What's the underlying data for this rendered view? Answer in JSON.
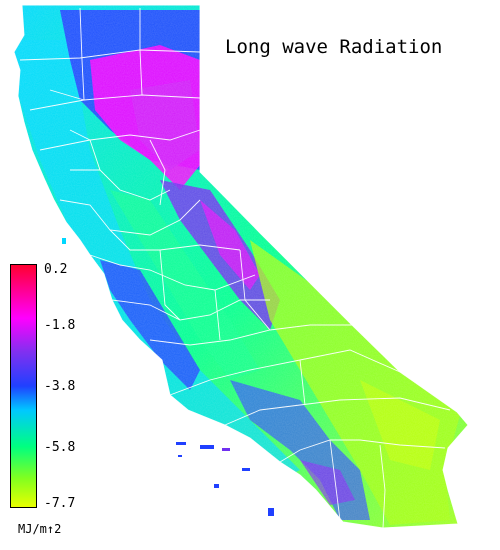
{
  "map": {
    "title": "Long wave Radiation",
    "colors": {
      "max": "#ff0030",
      "high": "#ff00ff",
      "mid_high": "#8030f0",
      "mid": "#2040ff",
      "mid_low": "#00c8ff",
      "low": "#00ff80",
      "very_low": "#80ff20",
      "min": "#e8ff00",
      "boundary": "#ffffff"
    }
  },
  "legend": {
    "ticks": [
      "0.2",
      "-1.8",
      "-3.8",
      "-5.8",
      "-7.7"
    ],
    "unit": "MJ/m↑2"
  }
}
